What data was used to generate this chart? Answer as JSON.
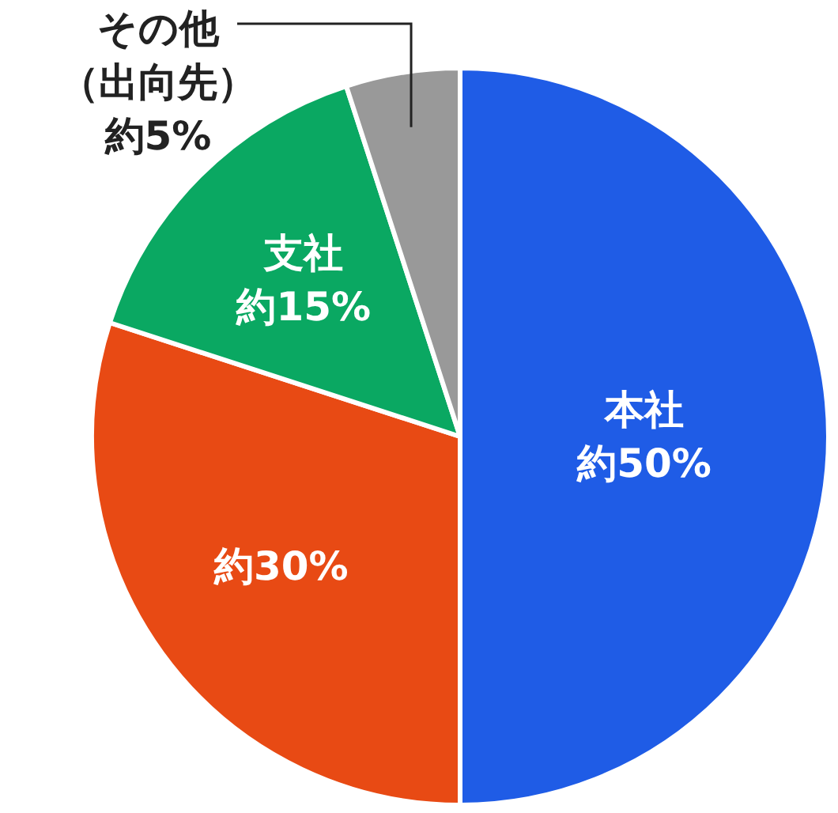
{
  "chart_data": {
    "type": "pie",
    "categories": [
      "本社",
      null,
      "支社",
      "その他（出向先）"
    ],
    "values": [
      50,
      30,
      15,
      5
    ],
    "value_labels": [
      "約50%",
      "約30%",
      "約15%",
      "約5%"
    ],
    "colors": [
      "#1f5ce6",
      "#e84a14",
      "#0aa862",
      "#999999"
    ]
  }
}
